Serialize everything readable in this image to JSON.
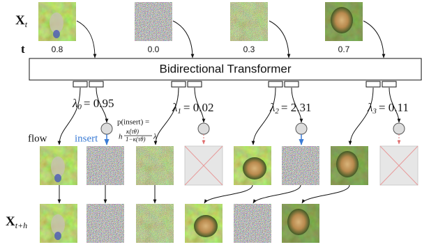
{
  "row_labels": {
    "x_t": {
      "symbol": "X",
      "sub": "t"
    },
    "t": "t",
    "x_t_h": {
      "symbol": "X",
      "sub": "t+h"
    }
  },
  "time_values": [
    "0.8",
    "0.0",
    "0.3",
    "0.7"
  ],
  "transformer": "Bidirectional Transformer",
  "lambdas": [
    {
      "symbol": "λ",
      "sub": "0",
      "value": "= 0.95"
    },
    {
      "symbol": "λ",
      "sub": "1",
      "value": "= 0.02"
    },
    {
      "symbol": "λ",
      "sub": "2",
      "value": "= 2.31"
    },
    {
      "symbol": "λ",
      "sub": "3",
      "value": "= 0.11"
    }
  ],
  "insert_formula": {
    "lhs": "p(insert) =",
    "h": "h",
    "numerator": "κ̇(τθ)",
    "denominator": "1−κ(τθ)",
    "lambda": "λ"
  },
  "legend": {
    "flow": "flow",
    "insert": "insert"
  }
}
